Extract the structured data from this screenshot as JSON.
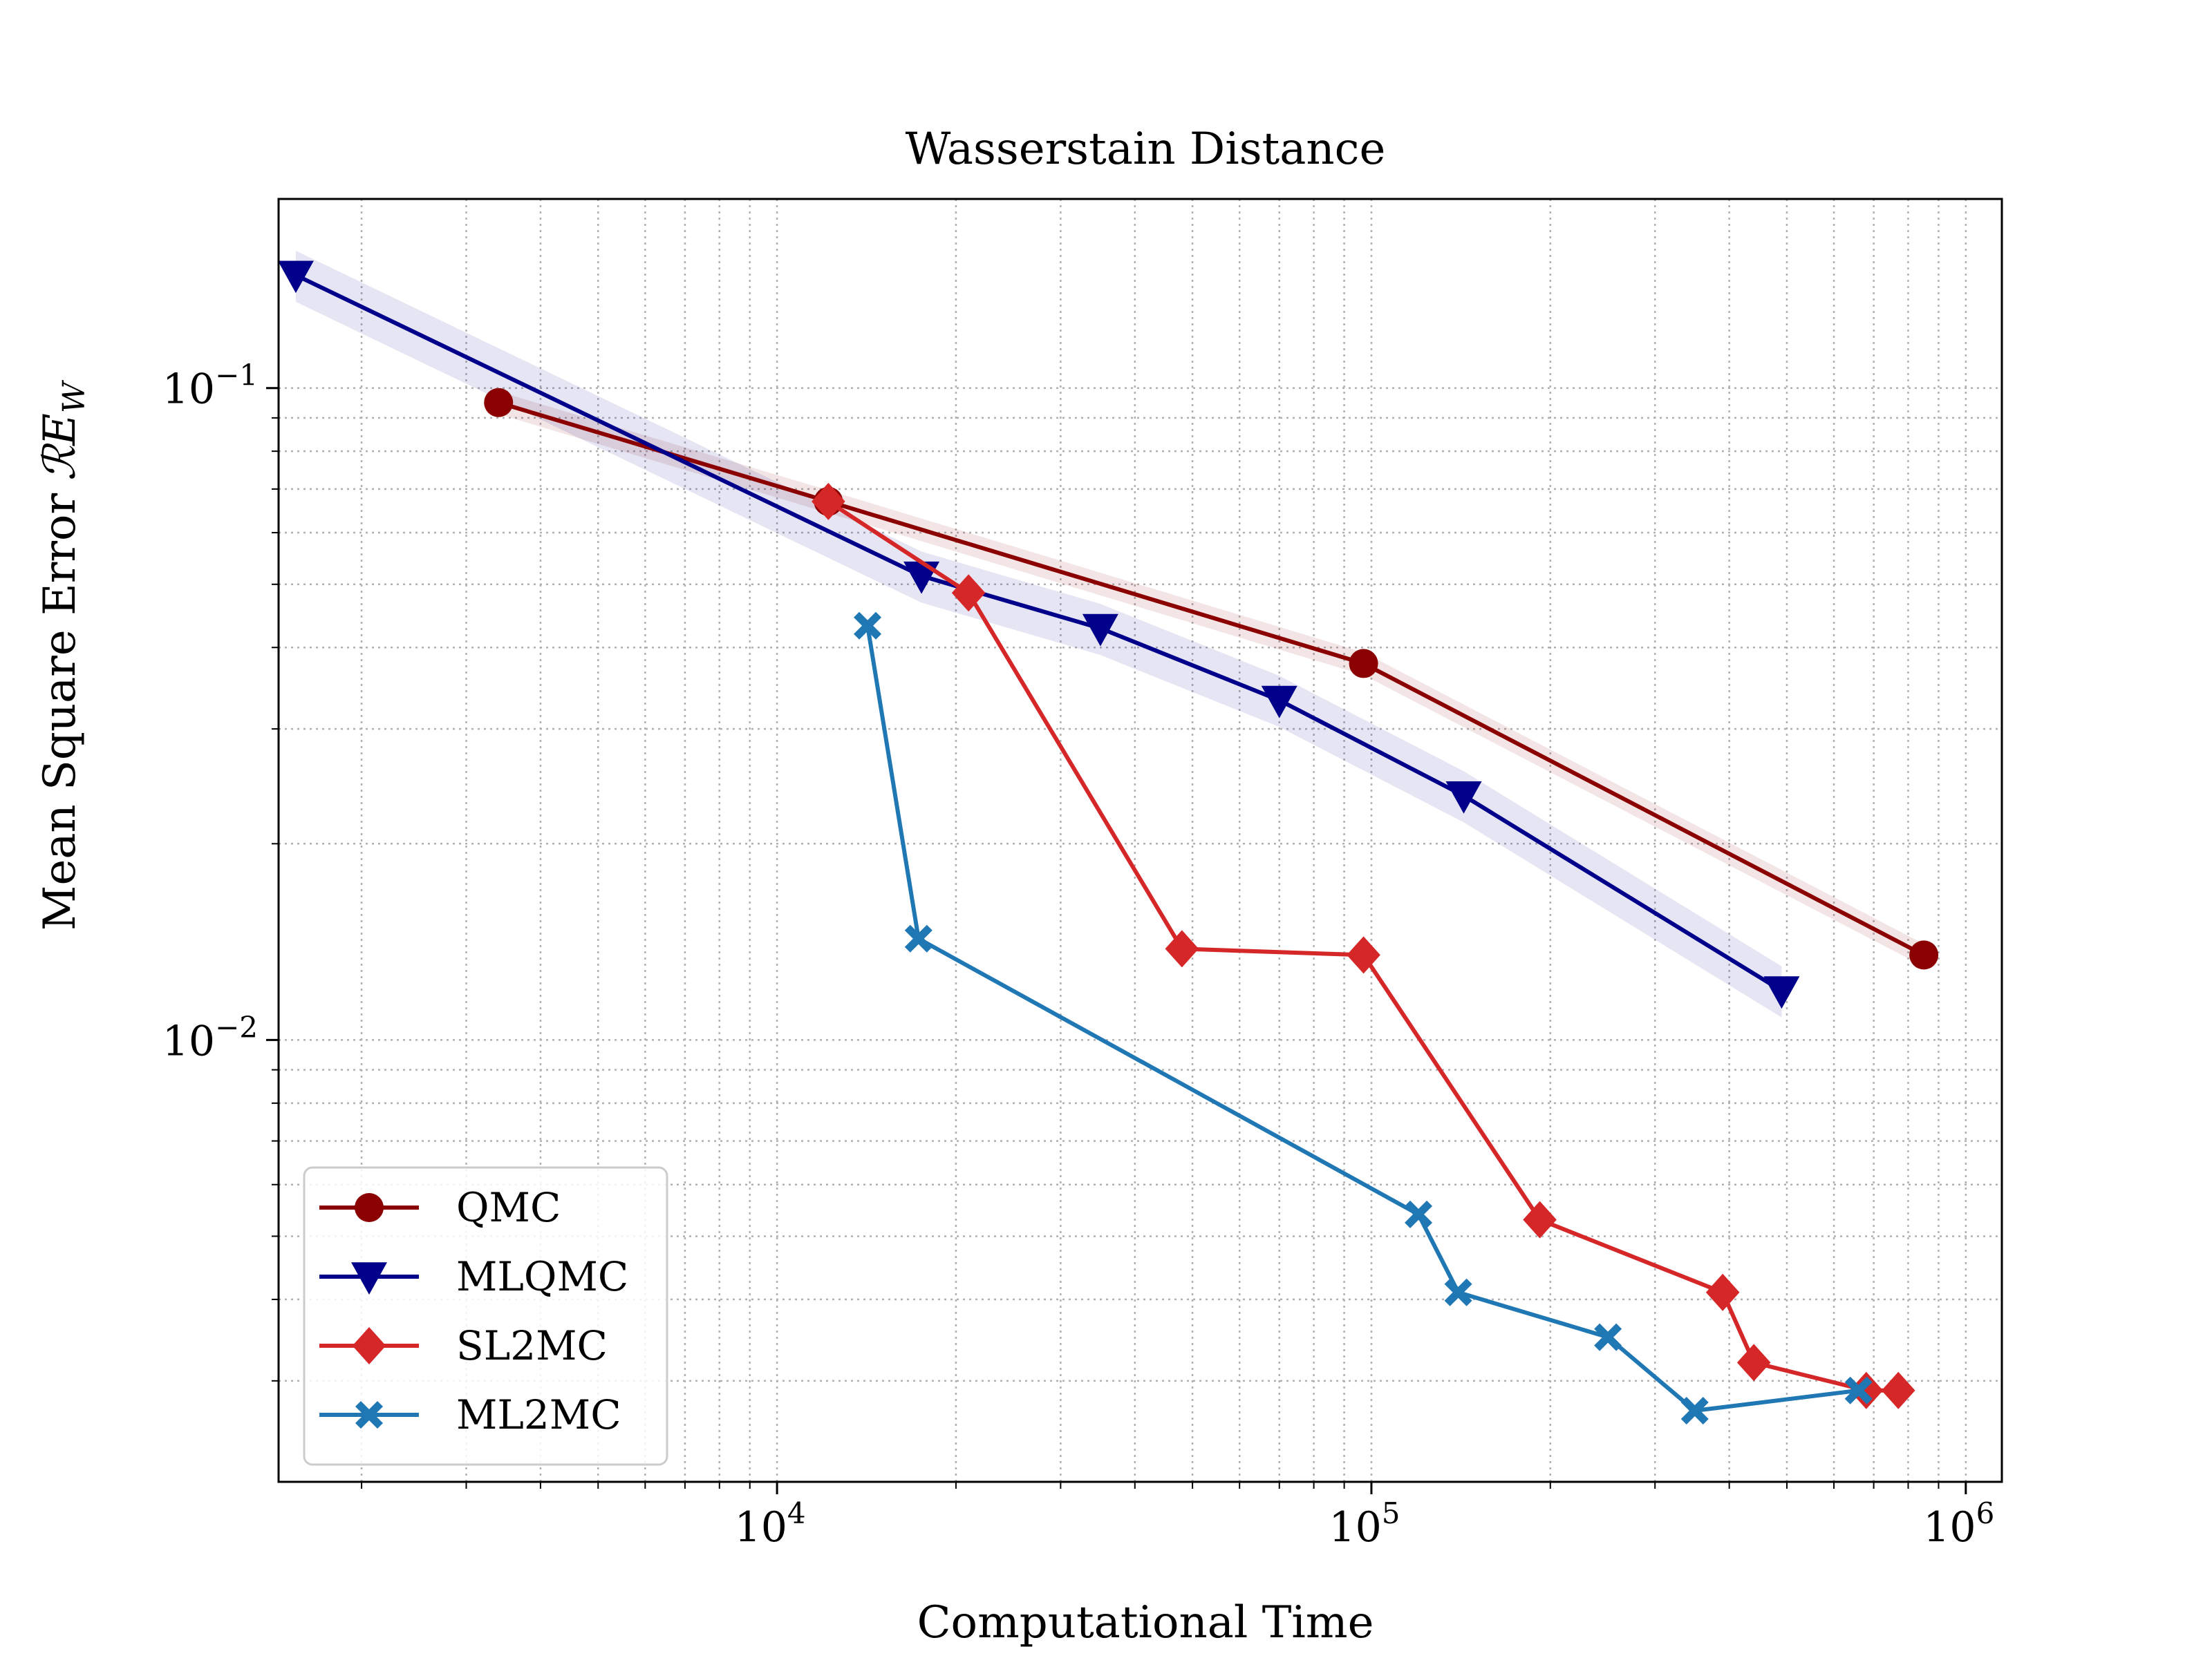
{
  "chart_data": {
    "type": "line",
    "title": "Wasserstain Distance",
    "xlabel": "Computational Time",
    "ylabel": "Mean Square Error",
    "ylabel_symbol": "ℛE",
    "ylabel_subscript": "W",
    "xscale": "log",
    "yscale": "log",
    "xlim": [
      1450,
      1150000
    ],
    "ylim": [
      0.0021,
      0.195
    ],
    "grid": true,
    "legend_position": "lower-left",
    "x_ticks": [
      {
        "value": 10000,
        "base": "10",
        "exp": "4"
      },
      {
        "value": 100000,
        "base": "10",
        "exp": "5"
      },
      {
        "value": 1000000,
        "base": "10",
        "exp": "6"
      }
    ],
    "y_ticks": [
      {
        "value": 0.01,
        "base": "10",
        "exp": "−2"
      },
      {
        "value": 0.1,
        "base": "10",
        "exp": "−1"
      }
    ],
    "series": [
      {
        "name": "QMC",
        "color": "#8b0000",
        "marker": "circle",
        "band": 0.04,
        "points": [
          [
            3400,
            0.095
          ],
          [
            12200,
            0.067
          ],
          [
            97000,
            0.0378
          ],
          [
            850000,
            0.0135
          ]
        ]
      },
      {
        "name": "MLQMC",
        "color": "#00008b",
        "marker": "triangle-down",
        "band": 0.09,
        "points": [
          [
            1550,
            0.149
          ],
          [
            17500,
            0.0515
          ],
          [
            35000,
            0.0428
          ],
          [
            70000,
            0.0332
          ],
          [
            143000,
            0.0237
          ],
          [
            490000,
            0.0119
          ]
        ]
      },
      {
        "name": "SL2MC",
        "color": "#d62728",
        "marker": "diamond",
        "points": [
          [
            12200,
            0.067
          ],
          [
            21000,
            0.0485
          ],
          [
            48000,
            0.0138
          ],
          [
            97000,
            0.0135
          ],
          [
            192000,
            0.0053
          ],
          [
            390000,
            0.0041
          ],
          [
            440000,
            0.0032
          ],
          [
            680000,
            0.0029
          ],
          [
            770000,
            0.0029
          ]
        ]
      },
      {
        "name": "ML2MC",
        "color": "#1f77b4",
        "marker": "x-filled",
        "points": [
          [
            14200,
            0.0432
          ],
          [
            17300,
            0.0143
          ],
          [
            120000,
            0.0054
          ],
          [
            140000,
            0.0041
          ],
          [
            250000,
            0.0035
          ],
          [
            350000,
            0.0027
          ],
          [
            660000,
            0.0029
          ]
        ]
      }
    ]
  }
}
